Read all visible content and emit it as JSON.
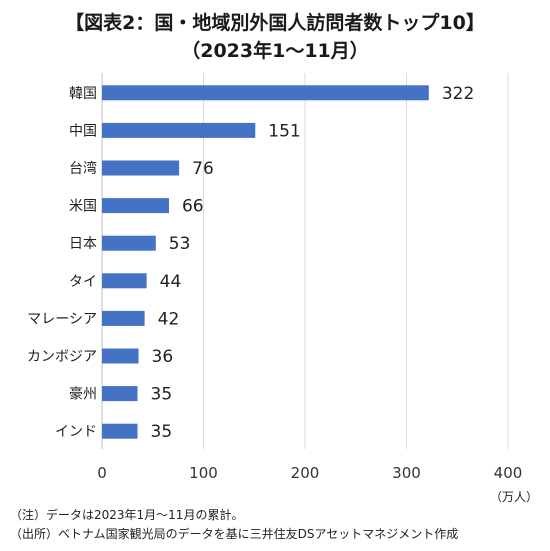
{
  "title_line1": "【図表2：国・地域別外国人訪問者数トップ10】",
  "title_line2": "（2023年1〜11月）",
  "unit_label": "（万人）",
  "notes": {
    "note1": "（注）データは2023年1月〜11月の累計。",
    "note2": "（出所）ベトナム国家観光局のデータを基に三井住友DSアセットマネジメント作成"
  },
  "colors": {
    "bar": "#4472C4",
    "grid": "#d9d9d9",
    "axis": "#bfbfbf"
  },
  "chart_data": {
    "type": "bar",
    "orientation": "horizontal",
    "categories": [
      "韓国",
      "中国",
      "台湾",
      "米国",
      "日本",
      "タイ",
      "マレーシア",
      "カンボジア",
      "豪州",
      "インド"
    ],
    "values": [
      322,
      151,
      76,
      66,
      53,
      44,
      42,
      36,
      35,
      35
    ],
    "xlim": [
      0,
      400
    ],
    "xticks": [
      0,
      100,
      200,
      300,
      400
    ],
    "grid": true,
    "data_labels": true
  }
}
